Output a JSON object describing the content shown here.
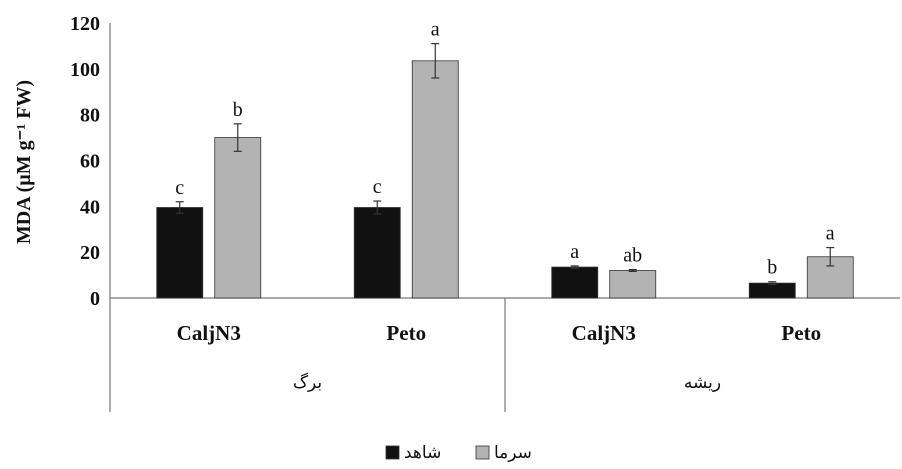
{
  "chart_data": {
    "type": "bar",
    "ylabel": "MDA (µM g⁻¹ FW)",
    "ylim": [
      0,
      120
    ],
    "yticks": [
      0,
      20,
      40,
      60,
      80,
      100,
      120
    ],
    "groups": [
      {
        "label": "برگ",
        "categories": [
          "CaljN3",
          "Peto"
        ]
      },
      {
        "label": "ریشه",
        "categories": [
          "CaljN3",
          "Peto"
        ]
      }
    ],
    "categories": [
      "CaljN3",
      "Peto",
      "CaljN3",
      "Peto"
    ],
    "series": [
      {
        "name": "شاهد",
        "color": "#111111",
        "values": [
          39.5,
          39.5,
          13.5,
          6.5
        ],
        "errors": [
          2.5,
          2.8,
          0.5,
          0.6
        ],
        "labels": [
          "c",
          "c",
          "a",
          "b"
        ]
      },
      {
        "name": "سرما",
        "color": "#b3b3b3",
        "values": [
          70,
          103.5,
          12,
          18
        ],
        "errors": [
          6,
          7.5,
          0.4,
          4
        ],
        "labels": [
          "b",
          "a",
          "ab",
          "a"
        ]
      }
    ],
    "legend_position": "bottom-center",
    "grid": false
  }
}
